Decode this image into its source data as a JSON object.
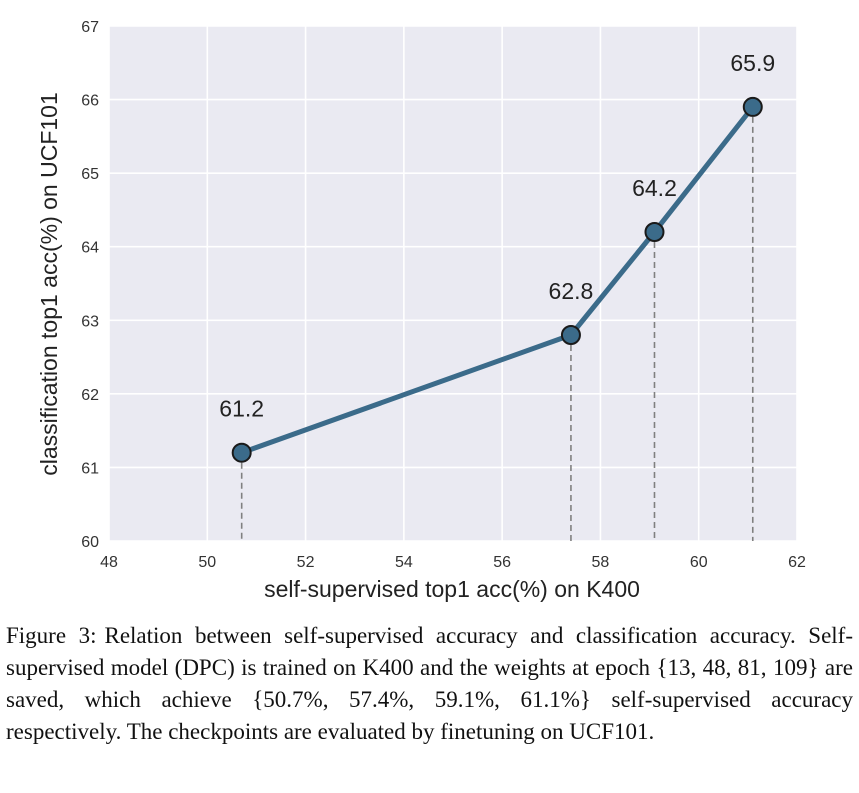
{
  "chart_data": {
    "type": "line",
    "title": "",
    "xlabel": "self-supervised top1 acc(%) on K400",
    "ylabel": "classification top1 acc(%) on UCF101",
    "xlim": [
      48,
      62
    ],
    "ylim": [
      60,
      67
    ],
    "xticks": [
      48,
      50,
      52,
      54,
      56,
      58,
      60,
      62
    ],
    "yticks": [
      60,
      61,
      62,
      63,
      64,
      65,
      66,
      67
    ],
    "grid": true,
    "series": [
      {
        "x": [
          50.7,
          57.4,
          59.1,
          61.1
        ],
        "y": [
          61.2,
          62.8,
          64.2,
          65.9
        ],
        "labels": [
          "61.2",
          "62.8",
          "64.2",
          "65.9"
        ]
      }
    ],
    "colors": {
      "line": "#3b6b8a",
      "marker": "#3b6b8a",
      "background": "#eaeaf2",
      "grid": "#ffffff",
      "dashed": "#808080"
    }
  },
  "caption": {
    "label": "Figure 3:",
    "text": "Relation between self-supervised accuracy and classification accuracy. Self-supervised model (DPC) is trained on K400 and the weights at epoch {13, 48, 81, 109} are saved, which achieve {50.7%, 57.4%, 59.1%, 61.1%} self-supervised accuracy respectively. The checkpoints are evaluated by finetuning on UCF101."
  }
}
